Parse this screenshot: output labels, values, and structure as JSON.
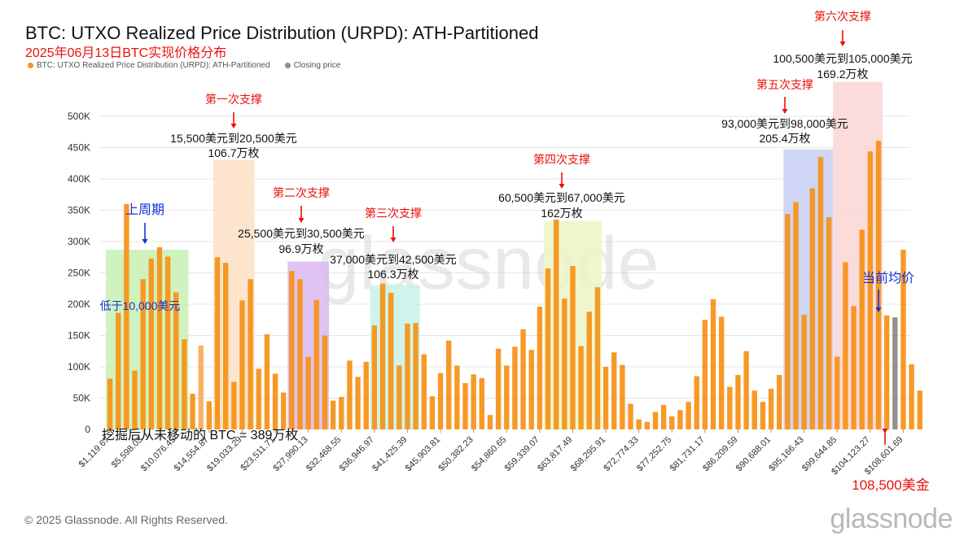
{
  "header": {
    "title": "BTC: UTXO Realized Price Distribution (URPD): ATH-Partitioned",
    "subtitle": "2025年06月13日BTC实现价格分布"
  },
  "legend": [
    {
      "label": "BTC: UTXO Realized Price Distribution (URPD): ATH-Partitioned",
      "color": "#f7931a"
    },
    {
      "label": "Closing price",
      "color": "#8c8c8c"
    }
  ],
  "footer": {
    "copyright": "© 2025 Glassnode. All Rights Reserved.",
    "logo": "glassnode",
    "watermark": "glassnode"
  },
  "colors": {
    "bar": "#f7931a",
    "bar_light": "#f9ad5f",
    "closing": "#8c8c8c",
    "support_text": "#e8120c",
    "annotation_blue": "#1432d8",
    "grid": "#e6e6e6"
  },
  "chart_data": {
    "type": "bar",
    "ylim": [
      0,
      550000
    ],
    "y_ticks": [
      {
        "value": 0,
        "label": "0"
      },
      {
        "value": 50000,
        "label": "50K"
      },
      {
        "value": 100000,
        "label": "100K"
      },
      {
        "value": 150000,
        "label": "150K"
      },
      {
        "value": 200000,
        "label": "200K"
      },
      {
        "value": 250000,
        "label": "250K"
      },
      {
        "value": 300000,
        "label": "300K"
      },
      {
        "value": 350000,
        "label": "350K"
      },
      {
        "value": 400000,
        "label": "400K"
      },
      {
        "value": 450000,
        "label": "450K"
      },
      {
        "value": 500000,
        "label": "500K"
      }
    ],
    "x_tick_labels": [
      {
        "index": 0,
        "label": "$1,119.67"
      },
      {
        "index": 4,
        "label": "$5,598.03"
      },
      {
        "index": 8,
        "label": "$10,076.45"
      },
      {
        "index": 12,
        "label": "$14,554.87"
      },
      {
        "index": 16,
        "label": "$19,033.29"
      },
      {
        "index": 20,
        "label": "$23,511.71"
      },
      {
        "index": 24,
        "label": "$27,990.13"
      },
      {
        "index": 28,
        "label": "$32,468.55"
      },
      {
        "index": 32,
        "label": "$36,946.97"
      },
      {
        "index": 36,
        "label": "$41,425.39"
      },
      {
        "index": 40,
        "label": "$45,903.81"
      },
      {
        "index": 44,
        "label": "$50,382.23"
      },
      {
        "index": 48,
        "label": "$54,860.65"
      },
      {
        "index": 52,
        "label": "$59,339.07"
      },
      {
        "index": 56,
        "label": "$63,817.49"
      },
      {
        "index": 60,
        "label": "$68,295.91"
      },
      {
        "index": 64,
        "label": "$72,774.33"
      },
      {
        "index": 68,
        "label": "$77,252.75"
      },
      {
        "index": 72,
        "label": "$81,731.17"
      },
      {
        "index": 76,
        "label": "$86,209.59"
      },
      {
        "index": 80,
        "label": "$90,688.01"
      },
      {
        "index": 84,
        "label": "$95,166.43"
      },
      {
        "index": 88,
        "label": "$99,644.85"
      },
      {
        "index": 92,
        "label": "$104,123.27"
      },
      {
        "index": 96,
        "label": "$108,601.69"
      }
    ],
    "values": [
      81000,
      186000,
      360000,
      94000,
      240000,
      273000,
      291000,
      276000,
      219000,
      144000,
      57000,
      134000,
      45000,
      275000,
      266000,
      76000,
      206000,
      240000,
      97000,
      152000,
      89000,
      59000,
      253000,
      240000,
      116000,
      207000,
      150000,
      46000,
      52000,
      110000,
      84000,
      108000,
      166000,
      233000,
      218000,
      102000,
      169000,
      170000,
      120000,
      53000,
      90000,
      142000,
      102000,
      74000,
      88000,
      82000,
      23000,
      129000,
      102000,
      132000,
      160000,
      127000,
      196000,
      257000,
      335000,
      209000,
      261000,
      133000,
      188000,
      227000,
      100000,
      123000,
      103000,
      41000,
      16000,
      12000,
      28000,
      39000,
      21000,
      31000,
      44000,
      85000,
      175000,
      208000,
      180000,
      68000,
      87000,
      125000,
      62000,
      44000,
      65000,
      87000,
      344000,
      363000,
      183000,
      385000,
      435000,
      339000,
      116000,
      267000,
      197000,
      319000,
      444000,
      461000,
      182000,
      179000,
      287000,
      104000,
      62000
    ],
    "closing_index": 95,
    "light_indices": [
      11
    ],
    "bands": [
      {
        "start": 0,
        "end": 9,
        "top": 287000,
        "color": "#c8f0b4"
      },
      {
        "start": 13,
        "end": 17,
        "top": 430000,
        "color": "#fbe0c3"
      },
      {
        "start": 22,
        "end": 26,
        "top": 268000,
        "color": "#d9b8f0"
      },
      {
        "start": 32,
        "end": 37,
        "top": 230000,
        "color": "#c6f2e8"
      },
      {
        "start": 53,
        "end": 59,
        "top": 333000,
        "color": "#ecf4c6"
      },
      {
        "start": 82,
        "end": 87,
        "top": 447000,
        "color": "#c7cef3"
      },
      {
        "start": 88,
        "end": 93,
        "top": 555000,
        "color": "#fbd5d5"
      }
    ],
    "annotations": {
      "cycle_label": "上周期",
      "below_10k": "低于10,000美元",
      "mined_never_moved": "挖掘后从未移动的 BTC = 389万枚",
      "current_avg": "当前均价",
      "price_now": "108,500美金",
      "s1_title": "第一次支撑",
      "s1_range": "15,500美元到20,500美元",
      "s1_amount": "106.7万枚",
      "s2_title": "第二次支撑",
      "s2_range": "25,500美元到30,500美元",
      "s2_amount": "96.9万枚",
      "s3_title": "第三次支撑",
      "s3_range": "37,000美元到42,500美元",
      "s3_amount": "106.3万枚",
      "s4_title": "第四次支撑",
      "s4_range": "60,500美元到67,000美元",
      "s4_amount": "162万枚",
      "s5_title": "第五次支撑",
      "s5_range": "93,000美元到98,000美元",
      "s5_amount": "205.4万枚",
      "s6_title": "第六次支撑",
      "s6_range": "100,500美元到105,000美元",
      "s6_amount": "169.2万枚"
    }
  }
}
